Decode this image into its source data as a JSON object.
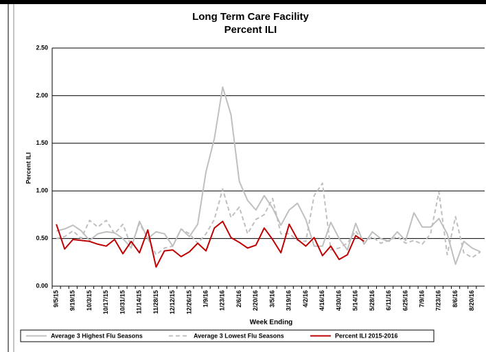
{
  "chart_data": {
    "type": "line",
    "title": "Long Term Care Facility",
    "subtitle": "Percent ILI",
    "x_label": "Week Ending",
    "y_label": "Percent ILI",
    "categories": [
      "9/5/15",
      null,
      "9/19/15",
      null,
      "10/3/15",
      null,
      "10/17/15",
      null,
      "10/31/15",
      null,
      "11/14/15",
      null,
      "11/28/15",
      null,
      "12/12/15",
      null,
      "12/26/15",
      null,
      "1/9/16",
      null,
      "1/23/16",
      null,
      "2/6/16",
      null,
      "2/20/16",
      null,
      "3/5/16",
      null,
      "3/19/16",
      null,
      "4/2/16",
      null,
      "4/16/16",
      null,
      "4/30/16",
      null,
      "5/14/16",
      null,
      "5/28/16",
      null,
      "6/11/16",
      null,
      "6/25/16",
      null,
      "7/9/16",
      null,
      "7/23/16",
      null,
      "8/6/16",
      null,
      "8/20/16",
      null
    ],
    "series": [
      {
        "name": "Average 3 Highest Flu Seasons",
        "color": "#bfbfbf",
        "dashed": false,
        "values": [
          0.58,
          0.6,
          0.64,
          0.58,
          0.48,
          0.55,
          0.57,
          0.56,
          0.5,
          0.4,
          0.68,
          0.5,
          0.57,
          0.55,
          0.42,
          0.6,
          0.52,
          0.65,
          1.2,
          1.55,
          2.09,
          1.8,
          1.1,
          0.9,
          0.8,
          0.95,
          0.82,
          0.64,
          0.8,
          0.87,
          0.7,
          0.42,
          0.42,
          0.67,
          0.5,
          0.38,
          0.66,
          0.44,
          0.57,
          0.5,
          0.47,
          0.57,
          0.48,
          0.77,
          0.62,
          0.62,
          0.71,
          0.55,
          0.23,
          0.47,
          0.4,
          0.36
        ]
      },
      {
        "name": "Average 3 Lowest Flu Seasons",
        "color": "#bfbfbf",
        "dashed": true,
        "values": [
          0.5,
          0.52,
          0.58,
          0.5,
          0.69,
          0.62,
          0.69,
          0.55,
          0.65,
          0.42,
          0.66,
          0.5,
          0.33,
          0.4,
          0.42,
          0.6,
          0.55,
          0.45,
          0.55,
          0.7,
          1.02,
          0.72,
          0.83,
          0.55,
          0.7,
          0.75,
          0.92,
          0.55,
          0.55,
          0.48,
          0.47,
          0.95,
          1.08,
          0.38,
          0.4,
          0.45,
          0.58,
          0.45,
          0.52,
          0.45,
          0.48,
          0.52,
          0.45,
          0.48,
          0.44,
          0.55,
          0.99,
          0.33,
          0.73,
          0.35,
          0.3,
          0.36
        ]
      },
      {
        "name": "Percent ILI 2015-2016",
        "color": "#c00000",
        "dashed": false,
        "values": [
          0.65,
          0.39,
          0.49,
          0.48,
          0.47,
          0.44,
          0.42,
          0.49,
          0.34,
          0.47,
          0.35,
          0.59,
          0.2,
          0.37,
          0.38,
          0.31,
          0.36,
          0.45,
          0.37,
          0.61,
          0.68,
          0.51,
          0.46,
          0.4,
          0.43,
          0.61,
          0.49,
          0.35,
          0.65,
          0.49,
          0.42,
          0.51,
          0.32,
          0.42,
          0.28,
          0.33,
          0.53,
          0.47,
          null,
          null,
          null,
          null,
          null,
          null,
          null,
          null,
          null,
          null,
          null,
          null,
          null,
          null
        ]
      }
    ],
    "ylim": [
      0,
      2.5
    ],
    "yticks": [
      {
        "value": 0,
        "label": "0.00"
      },
      {
        "value": 0.5,
        "label": "0.50"
      },
      {
        "value": 1,
        "label": "1.00"
      },
      {
        "value": 1.5,
        "label": "1.50"
      },
      {
        "value": 2,
        "label": "2.00"
      },
      {
        "value": 2.5,
        "label": "2.50"
      }
    ],
    "grid": true
  }
}
